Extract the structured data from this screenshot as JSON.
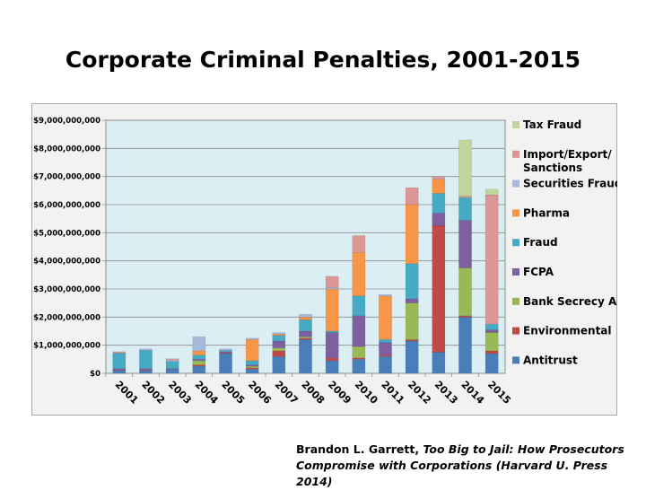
{
  "slide": {
    "title": "Corporate Criminal Penalties, 2001-2015",
    "citation_author": "Brandon L. Garrett, ",
    "citation_work": "Too Big to Jail: How Prosecutors Compromise with Corporations (Harvard U. Press 2014)"
  },
  "chart_data": {
    "type": "bar",
    "stacked": true,
    "title": "",
    "xlabel": "",
    "ylabel": "",
    "ylim": [
      0,
      9000000000
    ],
    "grid": true,
    "legend_position": "right",
    "y_ticks": [
      "$0",
      "$1,000,000,000",
      "$2,000,000,000",
      "$3,000,000,000",
      "$4,000,000,000",
      "$5,000,000,000",
      "$6,000,000,000",
      "$7,000,000,000",
      "$8,000,000,000",
      "$9,000,000,000"
    ],
    "categories": [
      "2001",
      "2002",
      "2003",
      "2004",
      "2005",
      "2006",
      "2007",
      "2008",
      "2009",
      "2010",
      "2011",
      "2012",
      "2013",
      "2014",
      "2015"
    ],
    "series": [
      {
        "name": "Antitrust",
        "color": "#4a7ebb",
        "values": [
          100000000,
          100000000,
          150000000,
          250000000,
          700000000,
          150000000,
          600000000,
          1200000000,
          450000000,
          500000000,
          600000000,
          1150000000,
          750000000,
          2000000000,
          700000000
        ]
      },
      {
        "name": "Environmental",
        "color": "#be4b48",
        "values": [
          20000000,
          20000000,
          20000000,
          50000000,
          20000000,
          50000000,
          200000000,
          50000000,
          100000000,
          50000000,
          50000000,
          50000000,
          4500000000,
          50000000,
          100000000
        ]
      },
      {
        "name": "Bank Secrecy Act",
        "color": "#98b954",
        "values": [
          0,
          0,
          0,
          150000000,
          0,
          50000000,
          100000000,
          50000000,
          0,
          400000000,
          0,
          1300000000,
          0,
          1700000000,
          650000000
        ]
      },
      {
        "name": "FCPA",
        "color": "#7d60a0",
        "values": [
          50000000,
          50000000,
          0,
          50000000,
          50000000,
          50000000,
          250000000,
          200000000,
          900000000,
          1100000000,
          450000000,
          150000000,
          450000000,
          1700000000,
          100000000
        ]
      },
      {
        "name": "Fraud",
        "color": "#46aac5",
        "values": [
          550000000,
          650000000,
          250000000,
          150000000,
          50000000,
          150000000,
          200000000,
          400000000,
          50000000,
          700000000,
          100000000,
          1250000000,
          700000000,
          800000000,
          200000000
        ]
      },
      {
        "name": "Pharma",
        "color": "#f79646",
        "values": [
          0,
          0,
          0,
          150000000,
          0,
          750000000,
          50000000,
          100000000,
          1500000000,
          1550000000,
          1550000000,
          2100000000,
          500000000,
          0,
          0
        ]
      },
      {
        "name": "Securities Fraud",
        "color": "#a5b9de",
        "values": [
          0,
          50000000,
          50000000,
          500000000,
          50000000,
          50000000,
          50000000,
          100000000,
          50000000,
          0,
          50000000,
          0,
          0,
          0,
          0
        ]
      },
      {
        "name": "Import/Export/\nSanctions",
        "color": "#da9795",
        "values": [
          50000000,
          0,
          50000000,
          0,
          0,
          0,
          0,
          0,
          400000000,
          600000000,
          0,
          600000000,
          100000000,
          50000000,
          4600000000
        ]
      },
      {
        "name": "Tax Fraud",
        "color": "#c2d69b",
        "values": [
          0,
          0,
          0,
          0,
          0,
          0,
          0,
          0,
          0,
          0,
          0,
          0,
          0,
          2000000000,
          200000000
        ]
      }
    ]
  }
}
